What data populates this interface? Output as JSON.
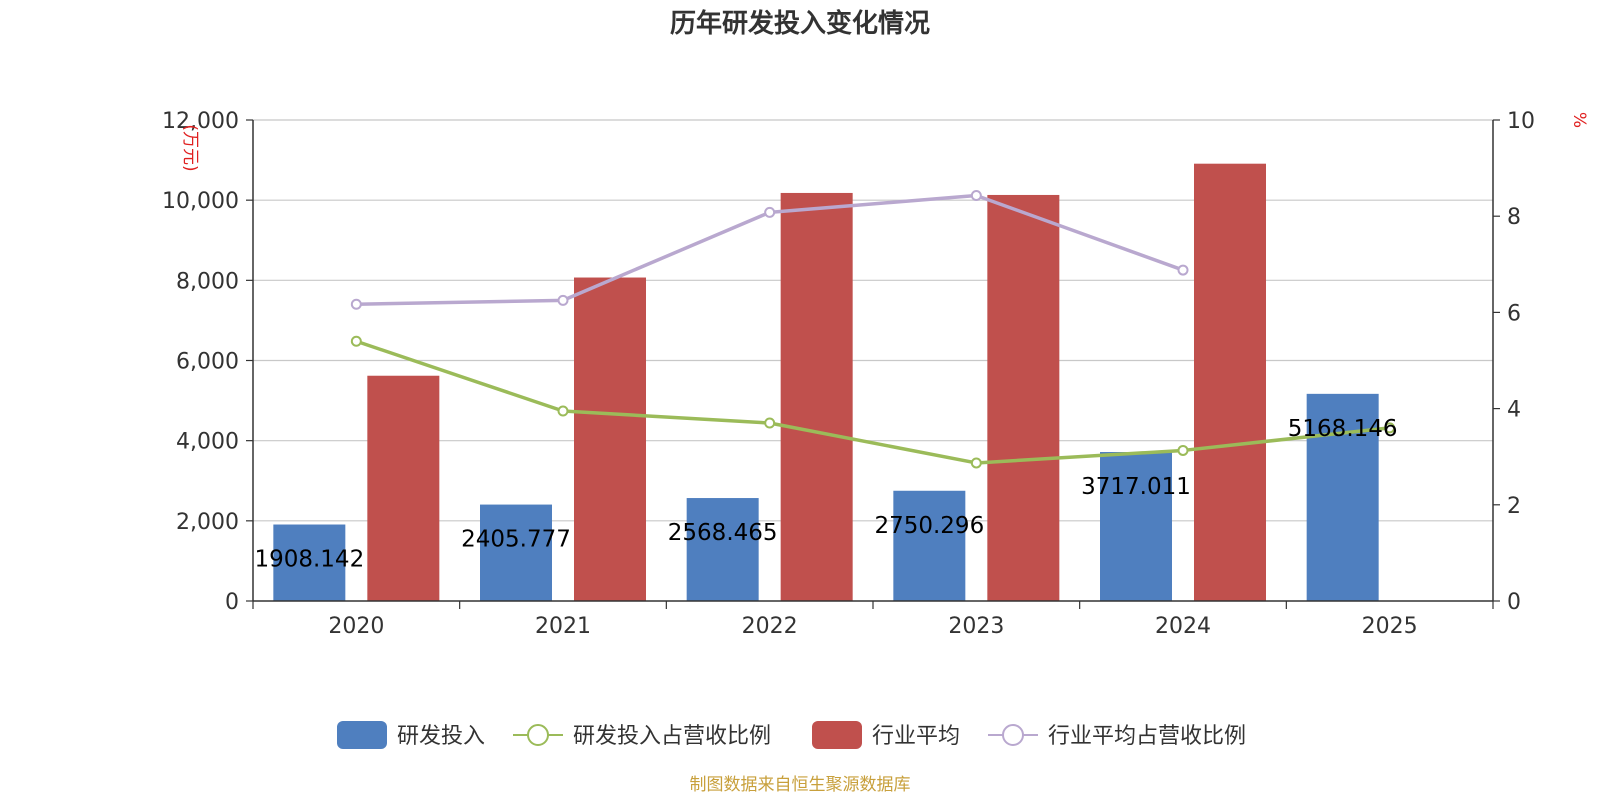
{
  "chart_data": {
    "type": "bar",
    "title": "历年研发投入变化情况",
    "categories": [
      "2020",
      "2021",
      "2022",
      "2023",
      "2024",
      "2025"
    ],
    "y_left": {
      "unit": "(万元)",
      "ylim": [
        0,
        12000
      ],
      "ticks": [
        0,
        2000,
        4000,
        6000,
        8000,
        10000,
        12000
      ],
      "tick_labels": [
        "0",
        "2,000",
        "4,000",
        "6,000",
        "8,000",
        "10,000",
        "12,000"
      ]
    },
    "y_right": {
      "unit": "%",
      "ylim": [
        0,
        10
      ],
      "ticks": [
        0,
        2,
        4,
        6,
        8,
        10
      ],
      "tick_labels": [
        "0",
        "2",
        "4",
        "6",
        "8",
        "10"
      ]
    },
    "grid": true,
    "legend_position": "bottom",
    "series": [
      {
        "name": "研发投入",
        "type": "bar",
        "axis": "left",
        "color": "#4f7fbf",
        "values": [
          1908.142,
          2405.777,
          2568.465,
          2750.296,
          3717.011,
          5168.146
        ],
        "labels": [
          "1908.142",
          "2405.777",
          "2568.465",
          "2750.296",
          "3717.011",
          "5168.146"
        ]
      },
      {
        "name": "研发投入占营收比例",
        "type": "line",
        "axis": "right",
        "color": "#9bbb59",
        "values": [
          5.4,
          3.95,
          3.7,
          2.87,
          3.13,
          3.6
        ]
      },
      {
        "name": "行业平均",
        "type": "bar",
        "axis": "left",
        "color": "#c0504d",
        "values": [
          5620,
          8070,
          10180,
          10130,
          10910,
          null
        ]
      },
      {
        "name": "行业平均占营收比例",
        "type": "line",
        "axis": "right",
        "color": "#b9a8cf",
        "values": [
          6.17,
          6.25,
          8.08,
          8.43,
          6.88,
          null
        ]
      }
    ],
    "source": "制图数据来自恒生聚源数据库"
  }
}
